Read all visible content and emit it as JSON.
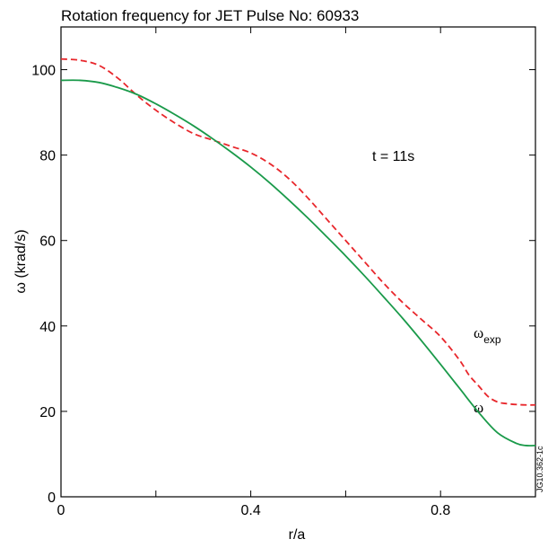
{
  "chart_data": {
    "type": "line",
    "title": "Rotation frequency for JET Pulse No: 60933",
    "xlabel": "r/a",
    "ylabel": "ω (krad/s)",
    "xlim": [
      0,
      1.0
    ],
    "ylim": [
      0,
      110
    ],
    "x_ticks": [
      0,
      0.4,
      0.8
    ],
    "x_tick_labels": [
      "0",
      "0.4",
      "0.8"
    ],
    "x_minor_ticks": [
      0.2,
      0.6
    ],
    "y_ticks": [
      0,
      20,
      40,
      60,
      80,
      100
    ],
    "y_tick_labels": [
      "0",
      "20",
      "40",
      "60",
      "80",
      "100"
    ],
    "grid": false,
    "annotation": "t = 11s",
    "figure_id": "JG10.362-1c",
    "series": [
      {
        "name": "ω_exp",
        "label_main": "ω",
        "label_sub": "exp",
        "color": "#e8262b",
        "dash": "dashed",
        "x": [
          0.0,
          0.04,
          0.08,
          0.12,
          0.16,
          0.2,
          0.24,
          0.28,
          0.32,
          0.36,
          0.4,
          0.44,
          0.48,
          0.52,
          0.56,
          0.6,
          0.64,
          0.68,
          0.72,
          0.76,
          0.8,
          0.84,
          0.86,
          0.88,
          0.9,
          0.92,
          0.94,
          0.96,
          0.98,
          1.0
        ],
        "y": [
          102.5,
          102.2,
          101.0,
          98.0,
          94.0,
          90.5,
          87.5,
          85.0,
          83.5,
          82.0,
          80.5,
          78.0,
          74.5,
          70.0,
          65.0,
          60.0,
          55.0,
          50.0,
          45.5,
          41.5,
          37.5,
          32.0,
          28.5,
          26.0,
          23.5,
          22.2,
          21.8,
          21.6,
          21.5,
          21.5
        ]
      },
      {
        "name": "ω",
        "label_main": "ω",
        "label_sub": "",
        "color": "#1a9a4a",
        "dash": "solid",
        "x": [
          0.0,
          0.04,
          0.08,
          0.12,
          0.16,
          0.2,
          0.24,
          0.28,
          0.32,
          0.36,
          0.4,
          0.44,
          0.48,
          0.52,
          0.56,
          0.6,
          0.64,
          0.68,
          0.72,
          0.76,
          0.8,
          0.84,
          0.88,
          0.92,
          0.96,
          0.98,
          1.0
        ],
        "y": [
          97.5,
          97.5,
          97.0,
          95.8,
          94.2,
          92.0,
          89.5,
          86.8,
          83.8,
          80.6,
          77.2,
          73.5,
          69.5,
          65.3,
          60.9,
          56.4,
          51.7,
          46.8,
          41.8,
          36.5,
          31.0,
          25.4,
          19.8,
          15.0,
          12.5,
          12.0,
          12.0
        ]
      }
    ]
  }
}
